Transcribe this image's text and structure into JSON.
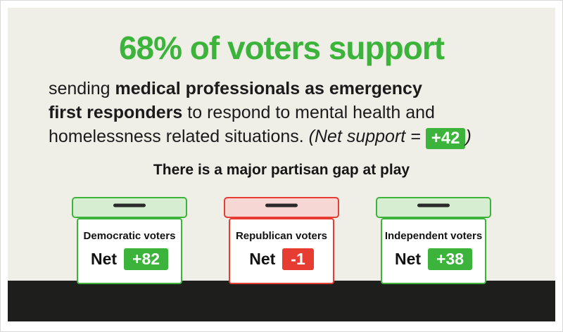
{
  "headline": "68% of voters support",
  "body": {
    "line1": {
      "normal": "sending ",
      "bold": "medical professionals as emergency"
    },
    "line2": {
      "bold": "first responders",
      "normal": " to respond to mental health and"
    },
    "line3": {
      "normal": "homelessness related situations. ",
      "paren_open": "(Net support = ",
      "value": "+42",
      "paren_close": ")"
    }
  },
  "subheading": "There is a major partisan gap at play",
  "boxes": [
    {
      "label": "Democratic voters",
      "net_label": "Net",
      "value": "+82",
      "color": "green"
    },
    {
      "label": "Republican voters",
      "net_label": "Net",
      "value": "-1",
      "color": "red"
    },
    {
      "label": "Independent voters",
      "net_label": "Net",
      "value": "+38",
      "color": "green"
    }
  ],
  "colors": {
    "green": "#3cb43c",
    "red": "#e63c32",
    "light_green": "#d7edd1",
    "light_red": "#f6d7d3",
    "background": "#efeee7",
    "footer_band": "#1e1e1c",
    "text": "#1b1b1b"
  },
  "chart_data": {
    "type": "bar",
    "title": "68% of voters support sending medical professionals as emergency first responders to respond to mental health and homelessness related situations",
    "subtitle": "There is a major partisan gap at play",
    "categories": [
      "Democratic voters",
      "Republican voters",
      "Independent voters"
    ],
    "values": [
      82,
      -1,
      38
    ],
    "series_label": "Net support",
    "annotations": [
      "Overall support: 68%",
      "Overall net support: +42"
    ],
    "xlabel": "",
    "ylabel": "Net support",
    "ylim": [
      -10,
      100
    ],
    "legend": "none",
    "grid": false
  }
}
